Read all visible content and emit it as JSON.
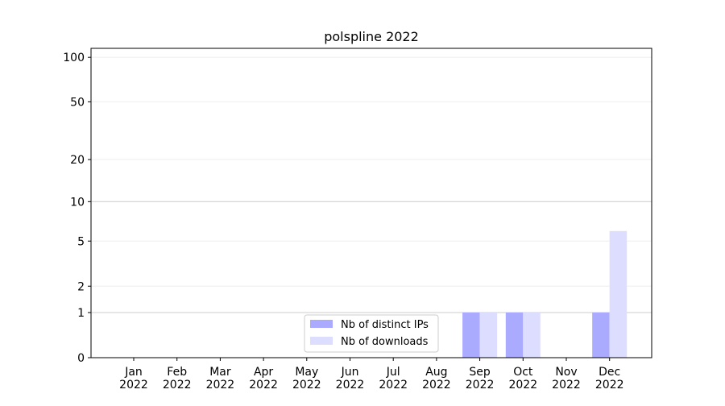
{
  "chart_data": {
    "type": "bar",
    "title": "polspline 2022",
    "categories": [
      "Jan\n2022",
      "Feb\n2022",
      "Mar\n2022",
      "Apr\n2022",
      "May\n2022",
      "Jun\n2022",
      "Jul\n2022",
      "Aug\n2022",
      "Sep\n2022",
      "Oct\n2022",
      "Nov\n2022",
      "Dec\n2022"
    ],
    "series": [
      {
        "name": "Nb of distinct IPs",
        "color": "#aaaaff",
        "values": [
          0,
          0,
          0,
          0,
          0,
          0,
          0,
          0,
          1,
          1,
          0,
          1
        ]
      },
      {
        "name": "Nb of downloads",
        "color": "#ddddff",
        "values": [
          0,
          0,
          0,
          0,
          0,
          0,
          0,
          0,
          1,
          1,
          0,
          6
        ]
      }
    ],
    "yscale": "log1p",
    "ylim": [
      0,
      115
    ],
    "yticks": [
      0,
      1,
      2,
      5,
      10,
      20,
      50,
      100
    ],
    "grid": true,
    "legend": "lower center"
  }
}
